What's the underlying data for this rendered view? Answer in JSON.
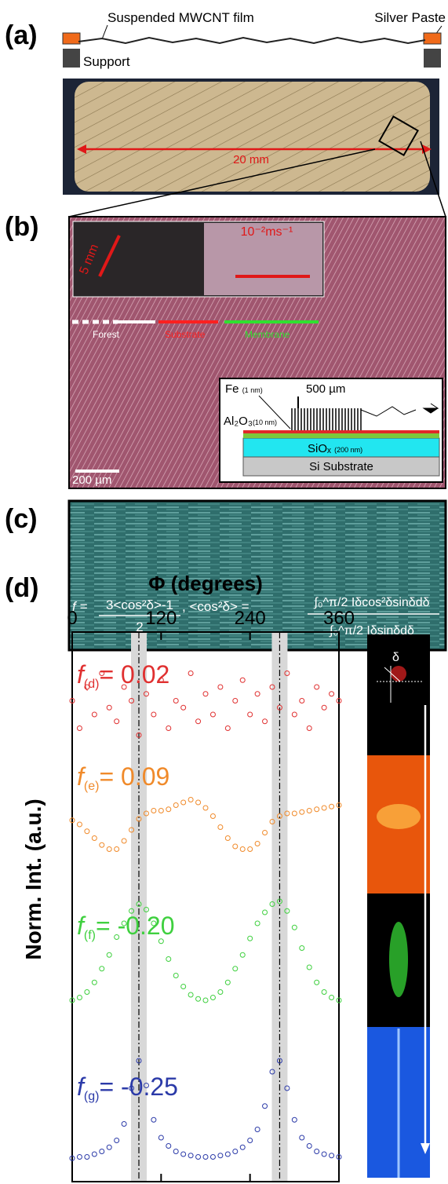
{
  "panel_a": {
    "label": "(a)",
    "film_label": "Suspended MWCNT film",
    "paste_label": "Silver Paste",
    "support_label": "Support",
    "scale_label": "20 mm"
  },
  "panel_b": {
    "label": "(b)",
    "inset_scale": "5 mm",
    "inset_speed": "10⁻²ms⁻¹",
    "stages": [
      "Forest",
      "Substrate",
      "Membrane"
    ],
    "schematic": {
      "fe": "Fe",
      "fe_thickness": "(1 nm)",
      "height": "500 µm",
      "alumina": "Al₂O₃",
      "alumina_thickness": "(10 nm)",
      "oxide": "SiOₓ",
      "oxide_thickness": "(200 nm)",
      "substrate": "Si Substrate"
    },
    "scale_bar": "200 µm"
  },
  "panel_c": {
    "label": "(c)",
    "formula": {
      "lhs": "f = ",
      "numerator": "3<cos²δ>-1",
      "denominator": "2",
      "separator": ",  <cos²δ> = ",
      "right_numerator": "∫₀^π/2 Iδcos²δsinδdδ",
      "right_denominator": "∫₀^π/2 Iδsinδdδ"
    }
  },
  "chart_data": {
    "type": "scatter",
    "panel_label": "(d)",
    "x_label": "Φ (degrees)",
    "y_label": "Norm. Int. (a.u.)",
    "inset_symbol": "δ",
    "xlim": [
      0,
      360
    ],
    "xticks": [
      0,
      120,
      240,
      360
    ],
    "ylim": [
      0,
      4
    ],
    "reference_lines": [
      90,
      280
    ],
    "x": [
      0,
      10,
      20,
      30,
      40,
      50,
      60,
      70,
      80,
      90,
      100,
      110,
      120,
      130,
      140,
      150,
      160,
      170,
      180,
      190,
      200,
      210,
      220,
      230,
      240,
      250,
      260,
      270,
      280,
      290,
      300,
      310,
      320,
      330,
      340,
      350,
      360
    ],
    "series": [
      {
        "label": {
          "symbol": "f",
          "subscript": "(d)",
          "text": "= 0.02"
        },
        "color": "#e03030",
        "values": [
          3.5,
          3.3,
          3.6,
          3.4,
          3.7,
          3.45,
          3.35,
          3.6,
          3.5,
          3.25,
          3.55,
          3.4,
          3.65,
          3.3,
          3.5,
          3.45,
          3.7,
          3.35,
          3.55,
          3.4,
          3.6,
          3.3,
          3.5,
          3.65,
          3.4,
          3.55,
          3.35,
          3.6,
          3.45,
          3.7,
          3.4,
          3.5,
          3.3,
          3.6,
          3.45,
          3.55,
          3.5
        ]
      },
      {
        "label": {
          "symbol": "f",
          "subscript": "(e)",
          "text": "= 0.09"
        },
        "color": "#f08a2a",
        "values": [
          2.63,
          2.6,
          2.55,
          2.5,
          2.45,
          2.42,
          2.42,
          2.48,
          2.56,
          2.64,
          2.68,
          2.7,
          2.7,
          2.71,
          2.74,
          2.76,
          2.78,
          2.76,
          2.72,
          2.66,
          2.58,
          2.5,
          2.44,
          2.42,
          2.42,
          2.46,
          2.54,
          2.62,
          2.66,
          2.68,
          2.68,
          2.69,
          2.7,
          2.71,
          2.72,
          2.73,
          2.74
        ]
      },
      {
        "label": {
          "symbol": "f",
          "subscript": "(f)",
          "text": "= -0.20"
        },
        "color": "#3fd03f",
        "values": [
          1.32,
          1.34,
          1.38,
          1.45,
          1.55,
          1.65,
          1.78,
          1.88,
          1.97,
          2.02,
          1.98,
          1.88,
          1.75,
          1.62,
          1.5,
          1.42,
          1.36,
          1.33,
          1.32,
          1.34,
          1.38,
          1.45,
          1.55,
          1.65,
          1.77,
          1.88,
          1.96,
          2.02,
          2.04,
          1.97,
          1.85,
          1.7,
          1.56,
          1.45,
          1.38,
          1.34,
          1.32
        ]
      },
      {
        "label": {
          "symbol": "f",
          "subscript": "(g)",
          "text": "= -0.25"
        },
        "color": "#2b3aa8",
        "values": [
          0.17,
          0.18,
          0.18,
          0.2,
          0.22,
          0.25,
          0.3,
          0.42,
          0.68,
          0.88,
          0.7,
          0.45,
          0.32,
          0.26,
          0.22,
          0.2,
          0.19,
          0.18,
          0.18,
          0.18,
          0.19,
          0.2,
          0.22,
          0.25,
          0.3,
          0.38,
          0.55,
          0.8,
          0.88,
          0.68,
          0.45,
          0.32,
          0.26,
          0.22,
          0.2,
          0.19,
          0.18
        ]
      }
    ]
  }
}
